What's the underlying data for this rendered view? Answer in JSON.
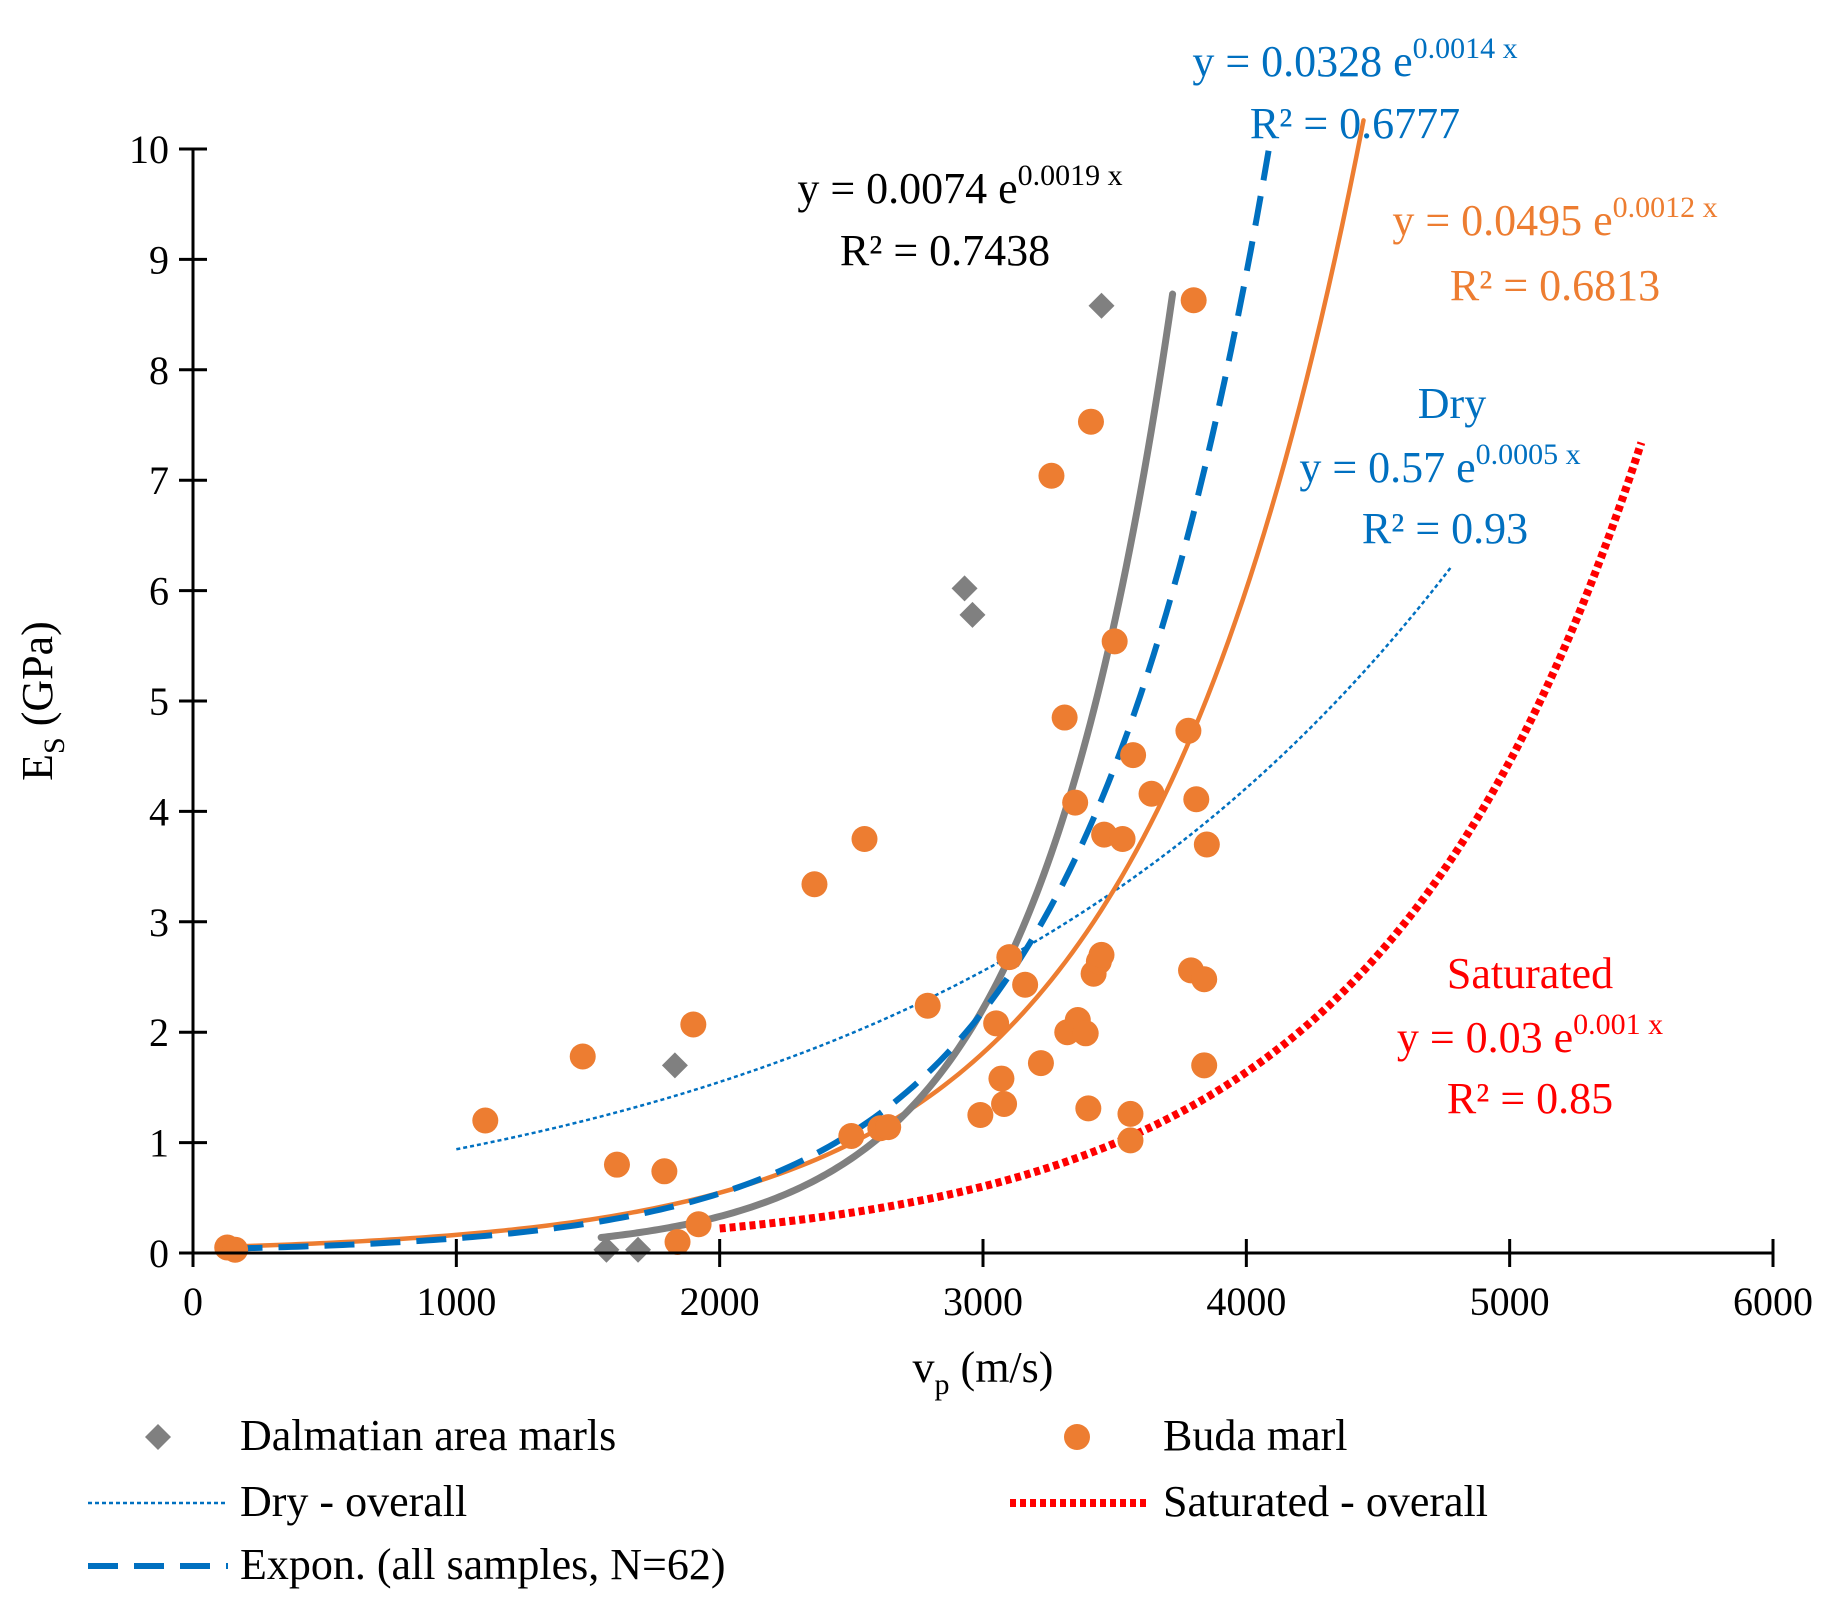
{
  "chart_data": {
    "type": "scatter",
    "xlabel": "v",
    "xlabel_sub": "p",
    "xlabel_unit": " (m/s)",
    "ylabel": "E",
    "ylabel_sub": "S",
    "ylabel_unit": " (GPa)",
    "xlim": [
      0,
      6000
    ],
    "ylim": [
      0,
      10
    ],
    "x_ticks": [
      0,
      1000,
      2000,
      3000,
      4000,
      5000,
      6000
    ],
    "y_ticks": [
      0,
      1,
      2,
      3,
      4,
      5,
      6,
      7,
      8,
      9,
      10
    ],
    "grid": false,
    "colors": {
      "dalmatian": "#808080",
      "buda": "#ED7D31",
      "dry": "#0070C0",
      "saturated": "#FF0000",
      "all": "#0070C0"
    },
    "series": [
      {
        "name": "Dalmatian area marls",
        "kind": "points",
        "marker": "diamond",
        "points": [
          [
            1570,
            0.03
          ],
          [
            1690,
            0.03
          ],
          [
            1830,
            1.7
          ],
          [
            2930,
            6.02
          ],
          [
            2960,
            5.78
          ],
          [
            3450,
            8.58
          ]
        ]
      },
      {
        "name": "Buda marl",
        "kind": "points",
        "marker": "circle",
        "points": [
          [
            130,
            0.05
          ],
          [
            160,
            0.03
          ],
          [
            1110,
            1.2
          ],
          [
            1480,
            1.78
          ],
          [
            1610,
            0.8
          ],
          [
            1790,
            0.74
          ],
          [
            1840,
            0.1
          ],
          [
            1900,
            2.07
          ],
          [
            1920,
            0.26
          ],
          [
            2360,
            3.34
          ],
          [
            2500,
            1.06
          ],
          [
            2550,
            3.75
          ],
          [
            2610,
            1.13
          ],
          [
            2640,
            1.14
          ],
          [
            2790,
            2.24
          ],
          [
            2990,
            1.25
          ],
          [
            3050,
            2.08
          ],
          [
            3070,
            1.58
          ],
          [
            3080,
            1.35
          ],
          [
            3100,
            2.68
          ],
          [
            3160,
            2.43
          ],
          [
            3220,
            1.72
          ],
          [
            3260,
            7.04
          ],
          [
            3310,
            4.85
          ],
          [
            3320,
            2.0
          ],
          [
            3350,
            4.08
          ],
          [
            3360,
            2.11
          ],
          [
            3390,
            1.99
          ],
          [
            3400,
            1.31
          ],
          [
            3410,
            7.53
          ],
          [
            3420,
            2.53
          ],
          [
            3440,
            2.64
          ],
          [
            3450,
            2.7
          ],
          [
            3460,
            3.79
          ],
          [
            3500,
            5.54
          ],
          [
            3530,
            3.75
          ],
          [
            3560,
            1.26
          ],
          [
            3560,
            1.02
          ],
          [
            3570,
            4.51
          ],
          [
            3640,
            4.16
          ],
          [
            3780,
            4.73
          ],
          [
            3790,
            2.56
          ],
          [
            3800,
            8.63
          ],
          [
            3810,
            4.11
          ],
          [
            3840,
            2.48
          ],
          [
            3840,
            1.7
          ],
          [
            3850,
            3.7
          ]
        ]
      }
    ],
    "trendlines": [
      {
        "name": "Dalmatian area marls trend",
        "a": 0.0074,
        "b": 0.0019,
        "x_from": 1550,
        "x_to": 3720,
        "style": "solid-thick",
        "color_key": "dalmatian"
      },
      {
        "name": "Buda marl trend",
        "a": 0.0495,
        "b": 0.0012,
        "x_from": 130,
        "x_to": 4445,
        "style": "solid",
        "color_key": "buda"
      },
      {
        "name": "Dry - overall",
        "a": 0.57,
        "b": 0.0005,
        "x_from": 1000,
        "x_to": 4780,
        "style": "dotted-thin",
        "color_key": "dry"
      },
      {
        "name": "Saturated - overall",
        "a": 0.03,
        "b": 0.001,
        "x_from": 2000,
        "x_to": 5500,
        "style": "dotted-thick",
        "color_key": "saturated"
      },
      {
        "name": "Expon. (all samples, N=62)",
        "a": 0.0328,
        "b": 0.0014,
        "x_from": 150,
        "x_to": 4090,
        "style": "dashed",
        "color_key": "all"
      }
    ],
    "annotations": [
      {
        "id": "all",
        "eq_base": "y = 0.0328 e",
        "eq_exp": "0.0014 x",
        "r2": "R² = 0.6777",
        "color_key": "all"
      },
      {
        "id": "dalmatian",
        "eq_base": "y = 0.0074 e",
        "eq_exp": "0.0019 x",
        "r2": "R² = 0.7438",
        "color_key": "black"
      },
      {
        "id": "buda",
        "eq_base": "y = 0.0495 e",
        "eq_exp": "0.0012 x",
        "r2": "R² = 0.6813",
        "color_key": "buda"
      },
      {
        "id": "dry",
        "label": "Dry",
        "eq_base": "y = 0.57 e",
        "eq_exp": "0.0005 x",
        "r2": "R² = 0.93",
        "color_key": "dry"
      },
      {
        "id": "saturated",
        "label": "Saturated",
        "eq_base": "y = 0.03 e",
        "eq_exp": "0.001 x",
        "r2": "R² = 0.85",
        "color_key": "saturated"
      }
    ],
    "legend": [
      {
        "label": "Dalmatian area marls",
        "symbol": "diamond",
        "color_key": "dalmatian"
      },
      {
        "label": "Buda marl",
        "symbol": "circle",
        "color_key": "buda"
      },
      {
        "label": "Dry - overall",
        "symbol": "dotted-thin",
        "color_key": "dry"
      },
      {
        "label": "Saturated - overall",
        "symbol": "dotted-thick",
        "color_key": "saturated"
      },
      {
        "label": "Expon. (all samples, N=62)",
        "symbol": "dashed",
        "color_key": "all"
      }
    ]
  }
}
